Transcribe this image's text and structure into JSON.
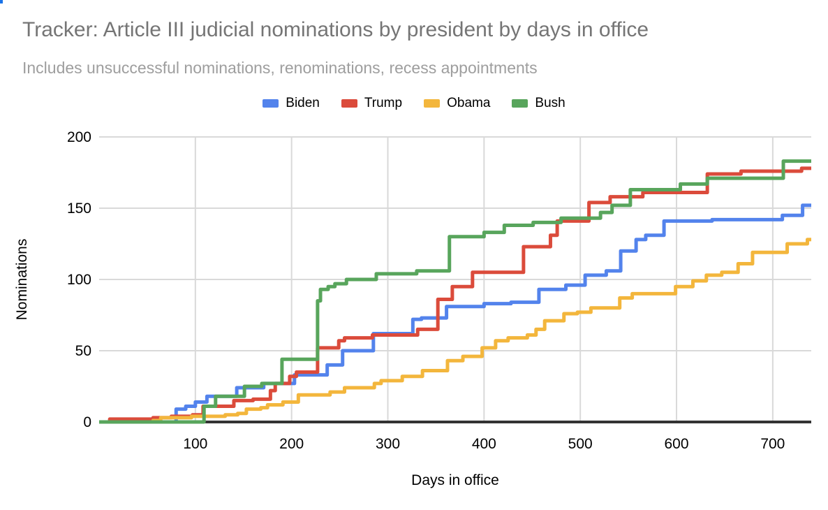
{
  "header": {
    "title": "Tracker: Article III judicial nominations by president by days in office",
    "subtitle": "Includes unsuccessful nominations, renominations, recess appointments"
  },
  "colors": {
    "title_text": "#757575",
    "subtitle_text": "#9e9e9e",
    "gridline": "#d9d9d9",
    "axis_line": "#333333",
    "tick_text": "#000000",
    "background": "#ffffff"
  },
  "chart_data": {
    "type": "line",
    "step": true,
    "title": "Tracker: Article III judicial nominations by president by days in office",
    "subtitle": "Includes unsuccessful nominations, renominations, recess appointments",
    "xlabel": "Days in office",
    "ylabel": "Nominations",
    "xlim": [
      0,
      740
    ],
    "ylim": [
      0,
      200
    ],
    "x_ticks": [
      100,
      200,
      300,
      400,
      500,
      600,
      700
    ],
    "y_ticks": [
      0,
      50,
      100,
      150,
      200
    ],
    "grid": true,
    "legend_position": "top",
    "series": [
      {
        "name": "Biden",
        "color": "#5383ec",
        "points": [
          [
            0,
            0
          ],
          [
            80,
            9
          ],
          [
            90,
            11
          ],
          [
            100,
            14
          ],
          [
            112,
            18
          ],
          [
            143,
            24
          ],
          [
            171,
            27
          ],
          [
            203,
            33
          ],
          [
            237,
            40
          ],
          [
            253,
            50
          ],
          [
            285,
            62
          ],
          [
            326,
            72
          ],
          [
            335,
            73
          ],
          [
            361,
            81
          ],
          [
            400,
            83
          ],
          [
            428,
            84
          ],
          [
            457,
            93
          ],
          [
            485,
            96
          ],
          [
            505,
            103
          ],
          [
            527,
            106
          ],
          [
            542,
            120
          ],
          [
            558,
            128
          ],
          [
            568,
            131
          ],
          [
            587,
            141
          ],
          [
            637,
            142
          ],
          [
            710,
            145
          ],
          [
            731,
            152
          ],
          [
            740,
            152
          ]
        ]
      },
      {
        "name": "Trump",
        "color": "#db4b3b",
        "points": [
          [
            0,
            0
          ],
          [
            11,
            2
          ],
          [
            56,
            3
          ],
          [
            75,
            4
          ],
          [
            97,
            5
          ],
          [
            108,
            11
          ],
          [
            140,
            15
          ],
          [
            160,
            16
          ],
          [
            178,
            22
          ],
          [
            183,
            27
          ],
          [
            198,
            32
          ],
          [
            205,
            35
          ],
          [
            227,
            52
          ],
          [
            249,
            57
          ],
          [
            255,
            59
          ],
          [
            284,
            61
          ],
          [
            331,
            65
          ],
          [
            352,
            86
          ],
          [
            367,
            95
          ],
          [
            388,
            105
          ],
          [
            441,
            123
          ],
          [
            469,
            131
          ],
          [
            476,
            141
          ],
          [
            509,
            154
          ],
          [
            531,
            158
          ],
          [
            565,
            161
          ],
          [
            632,
            174
          ],
          [
            667,
            176
          ],
          [
            730,
            178
          ],
          [
            740,
            178
          ]
        ]
      },
      {
        "name": "Obama",
        "color": "#f3b63c",
        "points": [
          [
            0,
            0
          ],
          [
            56,
            1
          ],
          [
            64,
            3
          ],
          [
            96,
            4
          ],
          [
            131,
            5
          ],
          [
            144,
            6
          ],
          [
            153,
            9
          ],
          [
            168,
            10
          ],
          [
            175,
            12
          ],
          [
            191,
            14
          ],
          [
            207,
            19
          ],
          [
            240,
            21
          ],
          [
            255,
            24
          ],
          [
            286,
            27
          ],
          [
            293,
            29
          ],
          [
            315,
            32
          ],
          [
            336,
            36
          ],
          [
            362,
            43
          ],
          [
            378,
            46
          ],
          [
            398,
            52
          ],
          [
            412,
            57
          ],
          [
            425,
            59
          ],
          [
            445,
            61
          ],
          [
            454,
            65
          ],
          [
            463,
            71
          ],
          [
            483,
            76
          ],
          [
            497,
            77
          ],
          [
            511,
            80
          ],
          [
            541,
            87
          ],
          [
            554,
            90
          ],
          [
            599,
            95
          ],
          [
            617,
            99
          ],
          [
            631,
            103
          ],
          [
            647,
            105
          ],
          [
            664,
            111
          ],
          [
            679,
            119
          ],
          [
            715,
            125
          ],
          [
            736,
            128
          ],
          [
            740,
            128
          ]
        ]
      },
      {
        "name": "Bush",
        "color": "#58a55c",
        "points": [
          [
            0,
            0
          ],
          [
            109,
            11
          ],
          [
            121,
            18
          ],
          [
            151,
            25
          ],
          [
            169,
            27
          ],
          [
            190,
            44
          ],
          [
            227,
            85
          ],
          [
            230,
            93
          ],
          [
            238,
            95
          ],
          [
            245,
            97
          ],
          [
            257,
            100
          ],
          [
            288,
            104
          ],
          [
            330,
            106
          ],
          [
            364,
            130
          ],
          [
            400,
            133
          ],
          [
            421,
            138
          ],
          [
            451,
            140
          ],
          [
            480,
            143
          ],
          [
            521,
            147
          ],
          [
            533,
            152
          ],
          [
            552,
            163
          ],
          [
            604,
            167
          ],
          [
            632,
            171
          ],
          [
            711,
            183
          ],
          [
            740,
            183
          ]
        ]
      }
    ]
  }
}
